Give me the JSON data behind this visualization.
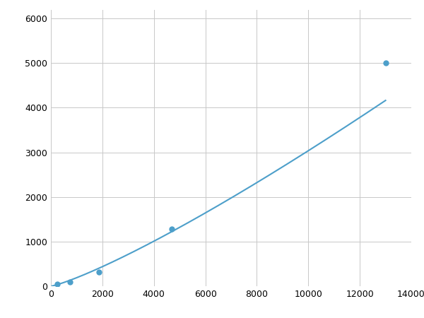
{
  "x_points": [
    250,
    750,
    1875,
    4688,
    13000
  ],
  "y_points": [
    50,
    100,
    310,
    1280,
    5000
  ],
  "line_color": "#4d9fca",
  "marker_color": "#4d9fca",
  "marker_size": 6,
  "line_width": 1.5,
  "xlim": [
    0,
    14000
  ],
  "ylim": [
    0,
    6200
  ],
  "xticks": [
    0,
    2000,
    4000,
    6000,
    8000,
    10000,
    12000,
    14000
  ],
  "yticks": [
    0,
    1000,
    2000,
    3000,
    4000,
    5000,
    6000
  ],
  "grid_color": "#c8c8c8",
  "background_color": "#ffffff",
  "tick_fontsize": 9,
  "figsize": [
    6.0,
    4.5
  ],
  "dpi": 100
}
